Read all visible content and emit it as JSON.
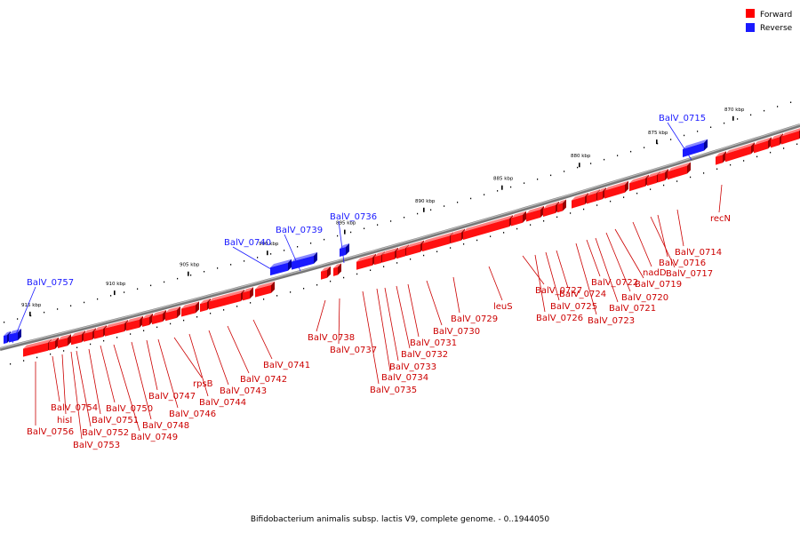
{
  "legend": {
    "forward_label": "Forward",
    "reverse_label": "Reverse",
    "forward_color": "#ff0000",
    "reverse_color": "#1a1aff"
  },
  "footer": "Bifidobacterium animalis subsp. lactis V9, complete genome. - 0..1944050",
  "track": {
    "ticks": [
      "915 kbp",
      "910 kbp",
      "905 kbp",
      "900 kbp",
      "895 kbp",
      "890 kbp",
      "885 kbp",
      "880 kbp",
      "875 kbp",
      "870 kbp"
    ]
  },
  "genes": [
    {
      "name": "BalV_0757",
      "strand": "reverse"
    },
    {
      "name": "BalV_0740",
      "strand": "reverse"
    },
    {
      "name": "BalV_0739",
      "strand": "reverse"
    },
    {
      "name": "BalV_0736",
      "strand": "reverse"
    },
    {
      "name": "BalV_0715",
      "strand": "reverse"
    },
    {
      "name": "BalV_0756",
      "strand": "forward"
    },
    {
      "name": "BalV_0754",
      "strand": "forward"
    },
    {
      "name": "hisI",
      "strand": "forward"
    },
    {
      "name": "BalV_0753",
      "strand": "forward"
    },
    {
      "name": "BalV_0752",
      "strand": "forward"
    },
    {
      "name": "BalV_0751",
      "strand": "forward"
    },
    {
      "name": "BalV_0750",
      "strand": "forward"
    },
    {
      "name": "BalV_0749",
      "strand": "forward"
    },
    {
      "name": "BalV_0748",
      "strand": "forward"
    },
    {
      "name": "BalV_0747",
      "strand": "forward"
    },
    {
      "name": "BalV_0746",
      "strand": "forward"
    },
    {
      "name": "rpsB",
      "strand": "forward"
    },
    {
      "name": "BalV_0744",
      "strand": "forward"
    },
    {
      "name": "BalV_0743",
      "strand": "forward"
    },
    {
      "name": "BalV_0742",
      "strand": "forward"
    },
    {
      "name": "BalV_0741",
      "strand": "forward"
    },
    {
      "name": "BalV_0738",
      "strand": "forward"
    },
    {
      "name": "BalV_0737",
      "strand": "forward"
    },
    {
      "name": "BalV_0735",
      "strand": "forward"
    },
    {
      "name": "BalV_0734",
      "strand": "forward"
    },
    {
      "name": "BalV_0733",
      "strand": "forward"
    },
    {
      "name": "BalV_0732",
      "strand": "forward"
    },
    {
      "name": "BalV_0731",
      "strand": "forward"
    },
    {
      "name": "BalV_0730",
      "strand": "forward"
    },
    {
      "name": "BalV_0729",
      "strand": "forward"
    },
    {
      "name": "leuS",
      "strand": "forward"
    },
    {
      "name": "BalV_0727",
      "strand": "forward"
    },
    {
      "name": "BalV_0726",
      "strand": "forward"
    },
    {
      "name": "BalV_0725",
      "strand": "forward"
    },
    {
      "name": "BalV_0724",
      "strand": "forward"
    },
    {
      "name": "BalV_0723",
      "strand": "forward"
    },
    {
      "name": "BalV_0722",
      "strand": "forward"
    },
    {
      "name": "BalV_0721",
      "strand": "forward"
    },
    {
      "name": "BalV_0720",
      "strand": "forward"
    },
    {
      "name": "BalV_0719",
      "strand": "forward"
    },
    {
      "name": "nadD",
      "strand": "forward"
    },
    {
      "name": "BalV_0717",
      "strand": "forward"
    },
    {
      "name": "BalV_0716",
      "strand": "forward"
    },
    {
      "name": "BalV_0714",
      "strand": "forward"
    },
    {
      "name": "recN",
      "strand": "forward"
    }
  ]
}
